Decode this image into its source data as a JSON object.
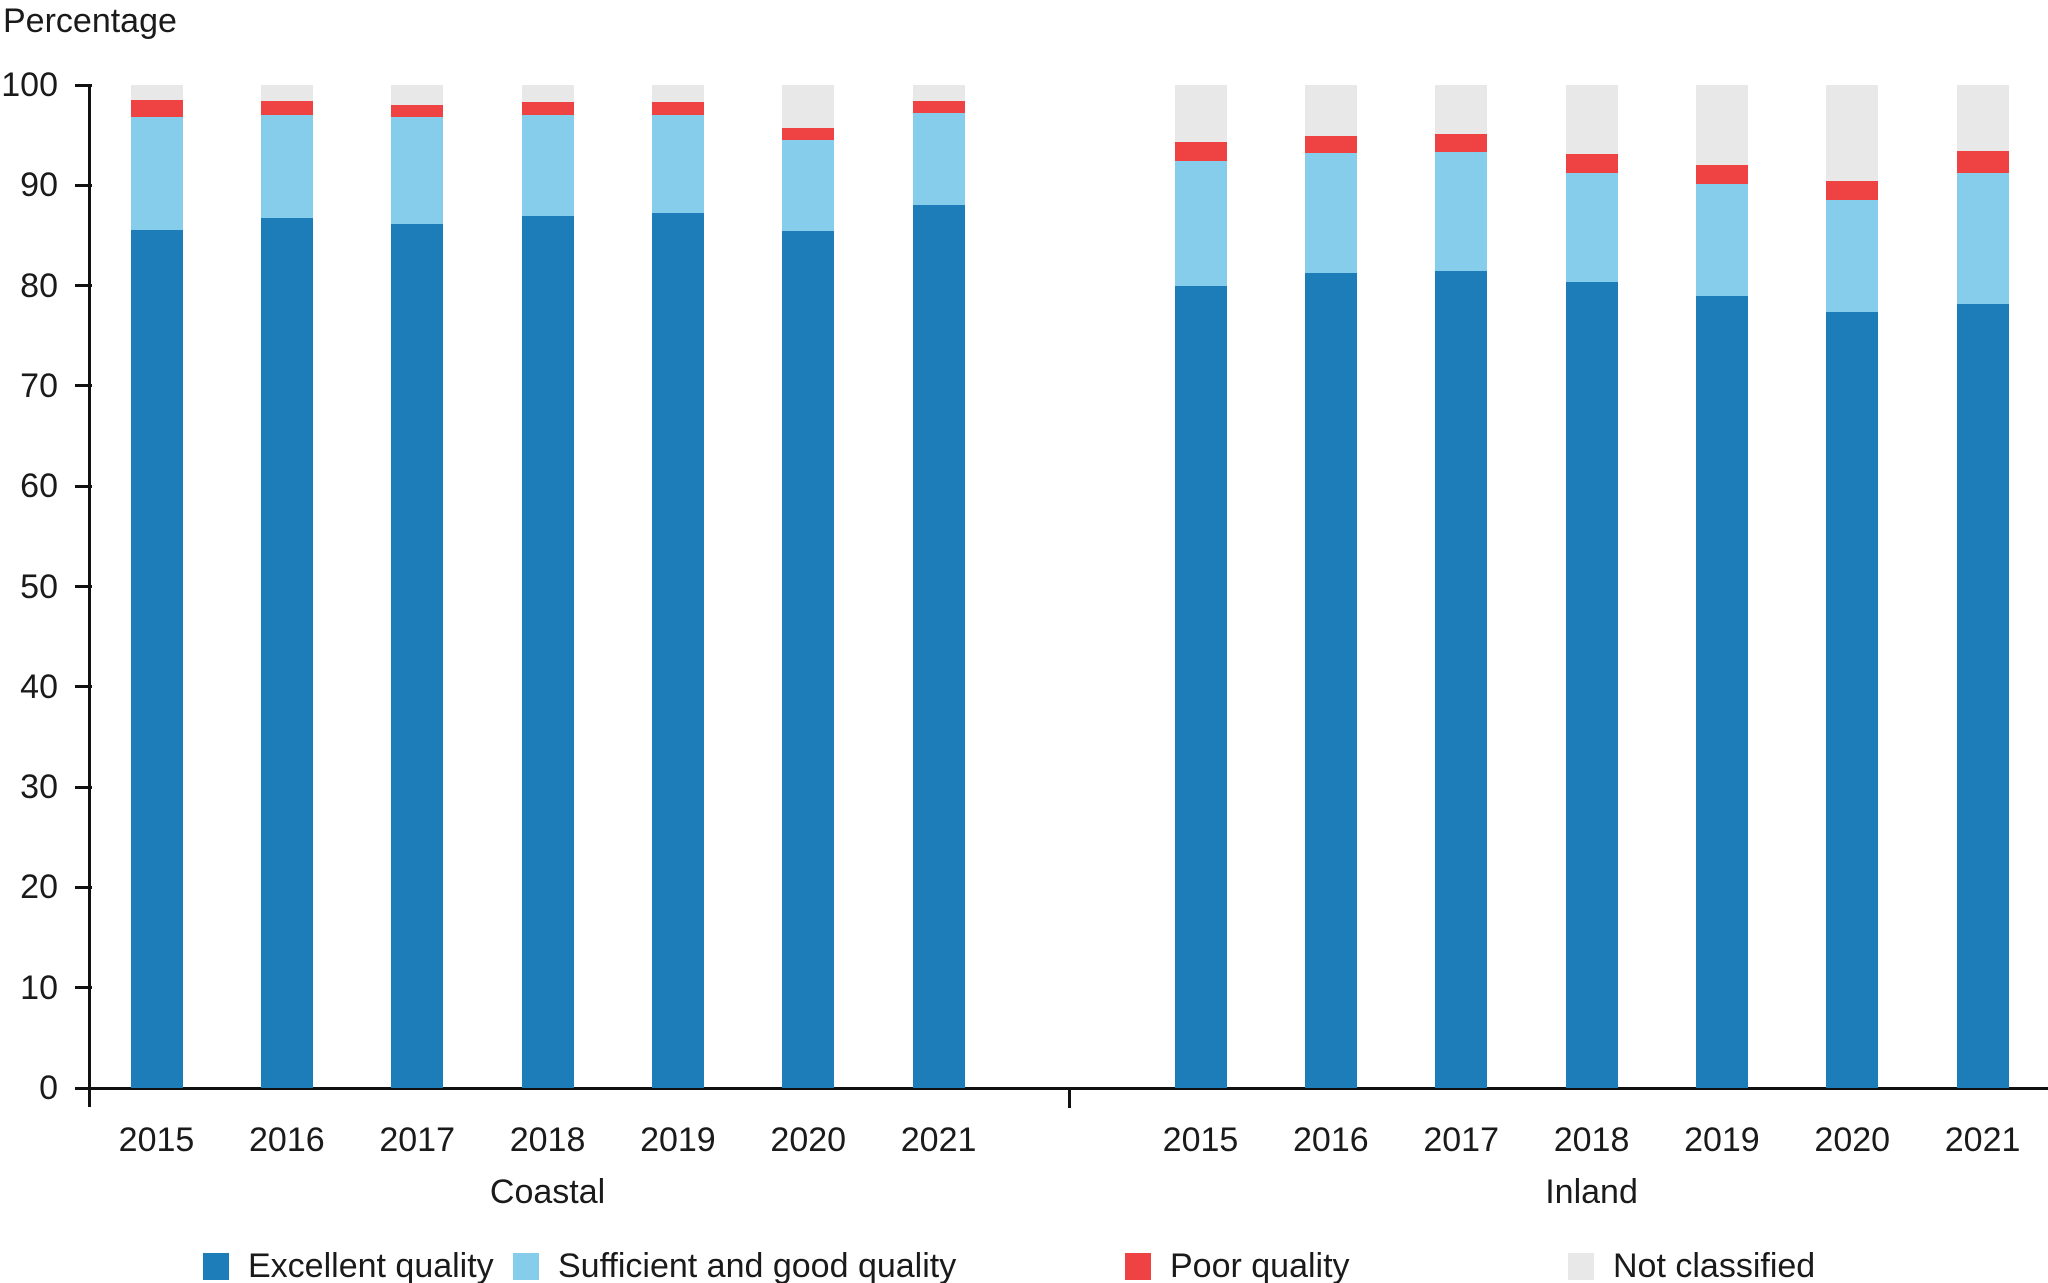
{
  "chart_data": {
    "type": "bar",
    "stacked": true,
    "title": "",
    "ylabel": "Percentage",
    "xlabel": "",
    "ylim": [
      0,
      100
    ],
    "ytick_step": 10,
    "yticks": [
      0,
      10,
      20,
      30,
      40,
      50,
      60,
      70,
      80,
      90,
      100
    ],
    "grid": false,
    "legend_position": "bottom",
    "series_names": [
      "Excellent quality",
      "Sufficient and good quality",
      "Poor quality",
      "Not classified"
    ],
    "groups": [
      {
        "label": "Coastal",
        "categories": [
          "2015",
          "2016",
          "2017",
          "2018",
          "2019",
          "2020",
          "2021"
        ],
        "series": [
          {
            "name": "Excellent quality",
            "values": [
              85.5,
              86.7,
              86.1,
              86.9,
              87.2,
              85.4,
              88.0
            ]
          },
          {
            "name": "Sufficient and good quality",
            "values": [
              11.3,
              10.3,
              10.7,
              10.1,
              9.8,
              9.1,
              9.2
            ]
          },
          {
            "name": "Poor quality",
            "values": [
              1.7,
              1.4,
              1.2,
              1.3,
              1.3,
              1.2,
              1.2
            ]
          },
          {
            "name": "Not classified",
            "values": [
              1.5,
              1.6,
              2.0,
              1.7,
              1.7,
              4.3,
              1.6
            ]
          }
        ]
      },
      {
        "label": "Inland",
        "categories": [
          "2015",
          "2016",
          "2017",
          "2018",
          "2019",
          "2020",
          "2021"
        ],
        "series": [
          {
            "name": "Excellent quality",
            "values": [
              80.0,
              81.3,
              81.5,
              80.4,
              79.0,
              77.4,
              78.2
            ]
          },
          {
            "name": "Sufficient and good quality",
            "values": [
              12.4,
              11.9,
              11.8,
              10.8,
              11.1,
              11.1,
              13.0
            ]
          },
          {
            "name": "Poor quality",
            "values": [
              1.9,
              1.7,
              1.8,
              1.9,
              1.9,
              1.9,
              2.2
            ]
          },
          {
            "name": "Not classified",
            "values": [
              5.7,
              5.1,
              4.9,
              6.9,
              8.0,
              9.6,
              6.6
            ]
          }
        ]
      }
    ],
    "legend": [
      {
        "label": "Excellent quality",
        "color": "#1c7db8"
      },
      {
        "label": "Sufficient and good quality",
        "color": "#85cdeb"
      },
      {
        "label": "Poor quality",
        "color": "#ee4342"
      },
      {
        "label": "Not classified",
        "color": "#e8e8e8"
      }
    ]
  }
}
